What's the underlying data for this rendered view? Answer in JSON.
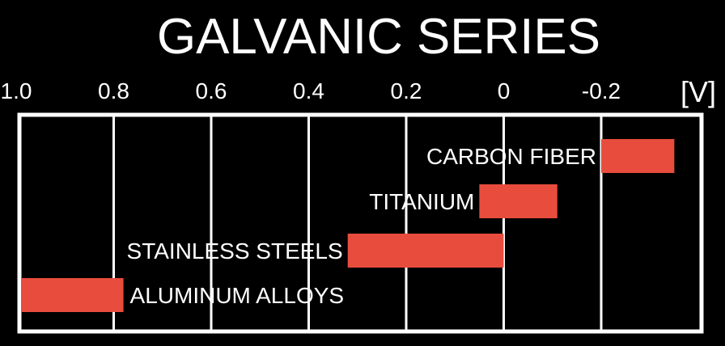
{
  "chart_data": {
    "type": "bar",
    "orientation": "horizontal-range",
    "title": "GALVANIC SERIES",
    "unit_label": "[V]",
    "x_axis_reversed": true,
    "xlim": [
      1.0,
      -0.35
    ],
    "ticks": [
      {
        "value": 1.0,
        "label": "1.0"
      },
      {
        "value": 0.8,
        "label": "0.8"
      },
      {
        "value": 0.6,
        "label": "0.6"
      },
      {
        "value": 0.4,
        "label": "0.4"
      },
      {
        "value": 0.2,
        "label": "0.2"
      },
      {
        "value": 0.0,
        "label": "0"
      },
      {
        "value": -0.2,
        "label": "-0.2"
      }
    ],
    "grid": true,
    "series": [
      {
        "category": "CARBON FIBER",
        "from": -0.2,
        "to": -0.35,
        "label_side": "left"
      },
      {
        "category": "TITANIUM",
        "from": 0.05,
        "to": -0.11,
        "label_side": "left"
      },
      {
        "category": "STAINLESS STEELS",
        "from": 0.32,
        "to": 0.0,
        "label_side": "left"
      },
      {
        "category": "ALUMINUM ALLOYS",
        "from": 0.99,
        "to": 0.78,
        "label_side": "right"
      }
    ],
    "colors": {
      "background": "#000000",
      "foreground": "#ffffff",
      "bar": "#e84c3d"
    }
  }
}
